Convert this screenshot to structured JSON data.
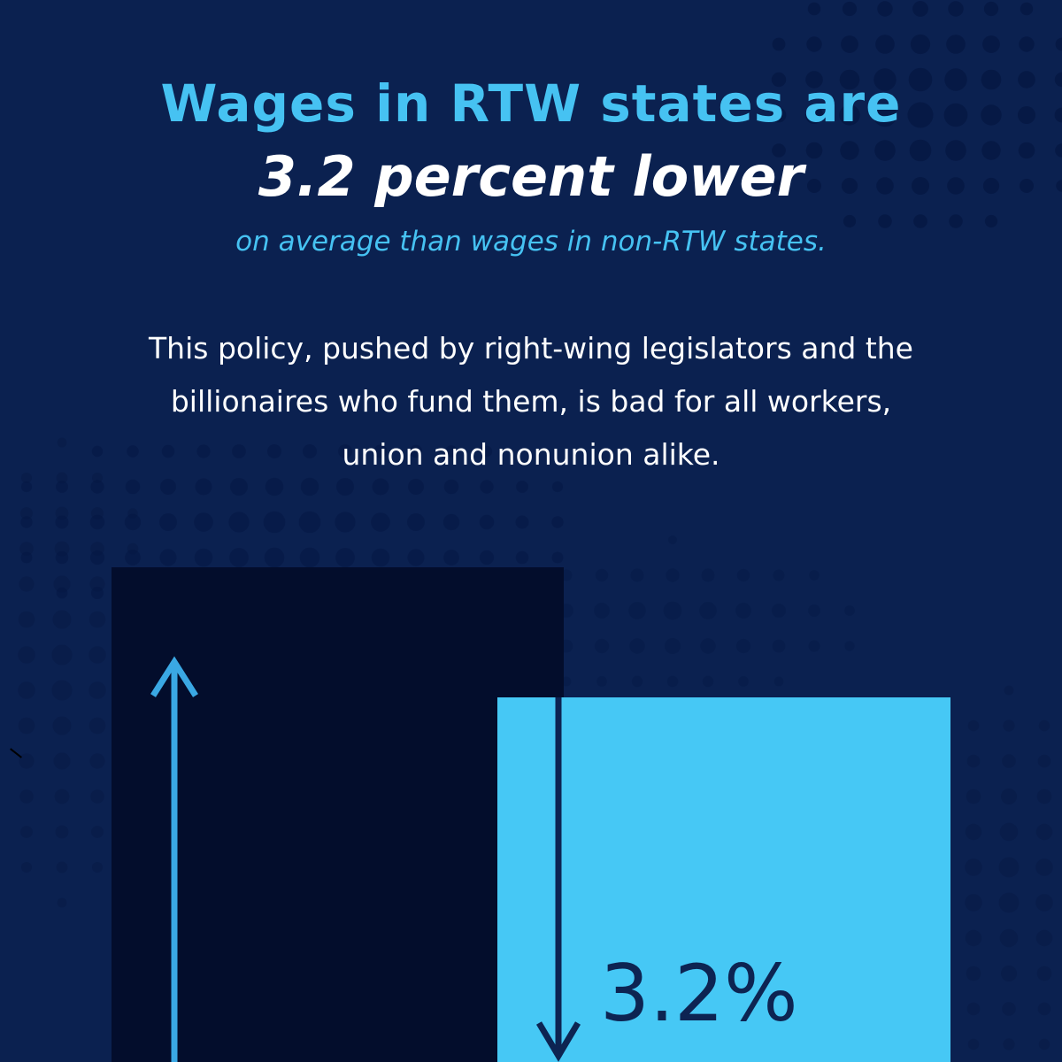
{
  "headline": {
    "line1": "Wages in RTW states are",
    "line2": "3.2 percent lower"
  },
  "subhead": "on average than wages in non-RTW states.",
  "body": {
    "lines": [
      "This policy, pushed by right-wing legislators and the",
      "billionaires who fund them, is bad for all workers,",
      "union and nonunion alike."
    ]
  },
  "graphic": {
    "difference_label": "3.2%",
    "difference_percent": 3.2
  },
  "colors": {
    "background": "#0b2150",
    "accent": "#46c2f2",
    "dark_bar": "#030d2c",
    "light_bar": "#46c8f5",
    "label": "#0d2452"
  },
  "icons": [
    "arrow-up-icon",
    "arrow-down-icon"
  ]
}
